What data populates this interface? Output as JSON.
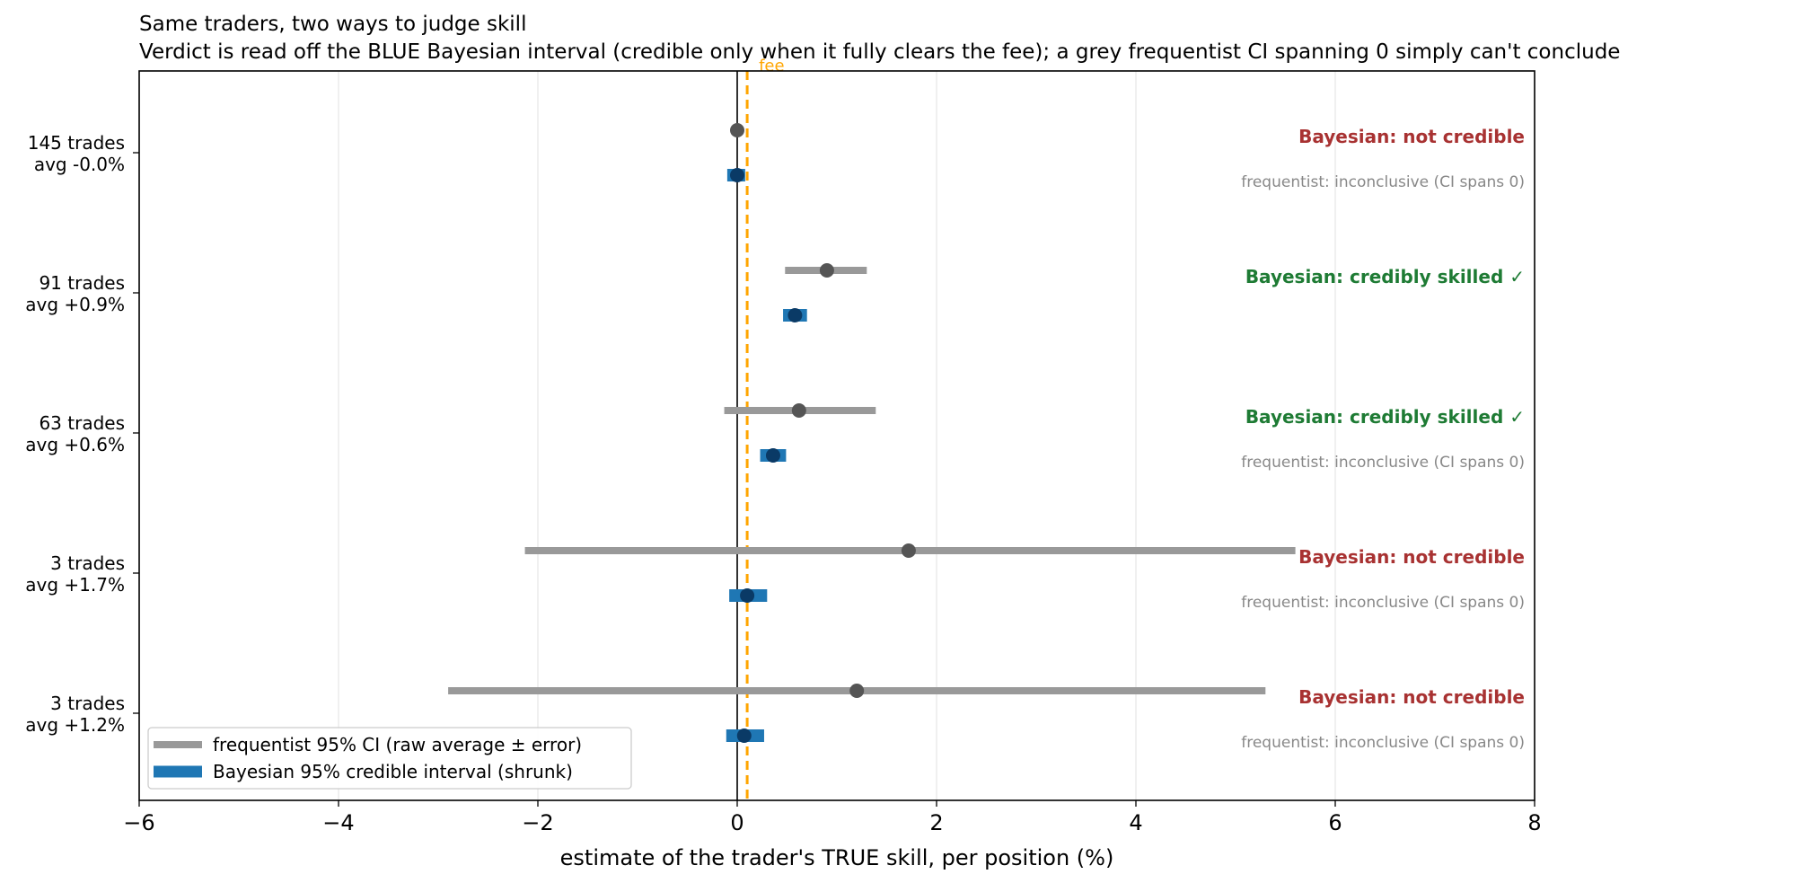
{
  "chart_data": {
    "type": "interval",
    "title": "Same traders, two ways to judge skill",
    "subtitle": "Verdict is read off the BLUE Bayesian interval (credible only when it fully clears the fee); a grey frequentist CI spanning 0 simply can't conclude",
    "xlabel": "estimate of the trader's TRUE skill, per position (%)",
    "xlim": [
      -6,
      8
    ],
    "xticks": [
      -6,
      -4,
      -2,
      0,
      2,
      4,
      6,
      8
    ],
    "xtick_labels": [
      "−6",
      "−4",
      "−2",
      "0",
      "2",
      "4",
      "6",
      "8"
    ],
    "grid": "vertical",
    "legend_position": "lower-left",
    "fee": {
      "label": "fee",
      "value": 0.1,
      "color": "#ffa500"
    },
    "colors": {
      "frequentist": "#999999",
      "frequentist_point": "#555555",
      "bayesian": "#1f77b4",
      "bayesian_point": "#0a3a66",
      "credible": "#1e7b34",
      "not_credible": "#a83232",
      "freq_note": "#888888"
    },
    "series": [
      {
        "name": "frequentist 95% CI (raw average ± error)"
      },
      {
        "name": "Bayesian 95% credible interval (shrunk)"
      }
    ],
    "traders": [
      {
        "label_line1": "145 trades",
        "label_line2": "avg -0.0%",
        "freq": {
          "low": -0.05,
          "mean": 0.0,
          "high": 0.05
        },
        "bayes": {
          "low": -0.1,
          "mean": 0.0,
          "high": 0.08
        },
        "verdict": "Bayesian: not credible",
        "verdict_type": "not_credible",
        "freq_note": "frequentist: inconclusive (CI spans 0)"
      },
      {
        "label_line1": "91 trades",
        "label_line2": "avg +0.9%",
        "freq": {
          "low": 0.48,
          "mean": 0.9,
          "high": 1.3
        },
        "bayes": {
          "low": 0.46,
          "mean": 0.58,
          "high": 0.7
        },
        "verdict": "Bayesian: credibly skilled ✓",
        "verdict_type": "credible",
        "freq_note": ""
      },
      {
        "label_line1": "63 trades",
        "label_line2": "avg +0.6%",
        "freq": {
          "low": -0.13,
          "mean": 0.62,
          "high": 1.39
        },
        "bayes": {
          "low": 0.23,
          "mean": 0.36,
          "high": 0.49
        },
        "verdict": "Bayesian: credibly skilled ✓",
        "verdict_type": "credible",
        "freq_note": "frequentist: inconclusive (CI spans 0)"
      },
      {
        "label_line1": "3 trades",
        "label_line2": "avg +1.7%",
        "freq": {
          "low": -2.13,
          "mean": 1.72,
          "high": 5.6
        },
        "bayes": {
          "low": -0.08,
          "mean": 0.1,
          "high": 0.3
        },
        "verdict": "Bayesian: not credible",
        "verdict_type": "not_credible",
        "freq_note": "frequentist: inconclusive (CI spans 0)"
      },
      {
        "label_line1": "3 trades",
        "label_line2": "avg +1.2%",
        "freq": {
          "low": -2.9,
          "mean": 1.2,
          "high": 5.3
        },
        "bayes": {
          "low": -0.11,
          "mean": 0.07,
          "high": 0.27
        },
        "verdict": "Bayesian: not credible",
        "verdict_type": "not_credible",
        "freq_note": "frequentist: inconclusive (CI spans 0)"
      }
    ]
  }
}
